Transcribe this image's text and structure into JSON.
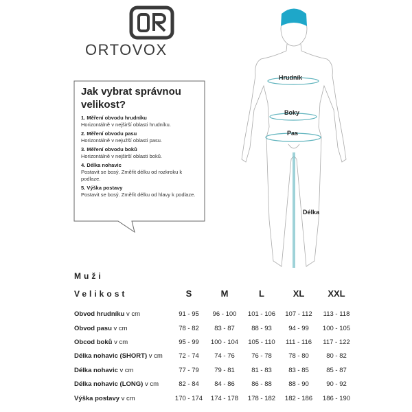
{
  "brand": {
    "name": "ORTOVOX",
    "logo_color": "#3a3a3a"
  },
  "guide": {
    "title": "Jak vybrat správnou velikost?",
    "steps": [
      {
        "heading": "1. Měření obvodu hrudníku",
        "text": "Horizontálně v nejširší oblasti hrudníku."
      },
      {
        "heading": "2. Měření obvodu pasu",
        "text": "Horizontálně v nejužší oblasti pasu."
      },
      {
        "heading": "3. Měření obvodu boků",
        "text": "Horizontálně v nejširší oblasti boků."
      },
      {
        "heading": "4. Délka nohavic",
        "text": "Postavit se bosý. Změřit délku od rozkroku k podlaze."
      },
      {
        "heading": "5. Výška postavy",
        "text": "Postavit se bosý. Změřit délku od hlavy k podlaze."
      }
    ]
  },
  "figure": {
    "labels": {
      "chest": "Hrudník",
      "hips": "Boky",
      "waist": "Pas",
      "length": "Délka"
    },
    "accent_color": "#1ea7c9",
    "line_color": "#5fb3bd"
  },
  "table": {
    "section": "Muži",
    "size_label": "Velikost",
    "sizes": [
      "S",
      "M",
      "L",
      "XL",
      "XXL"
    ],
    "rows": [
      {
        "label": "Obvod hrudníku",
        "unit": "v cm",
        "values": [
          "91 - 95",
          "96 - 100",
          "101 - 106",
          "107 - 112",
          "113 - 118"
        ]
      },
      {
        "label": "Obvod pasu",
        "unit": "v cm",
        "values": [
          "78 - 82",
          "83 - 87",
          "88 - 93",
          "94 - 99",
          "100 - 105"
        ]
      },
      {
        "label": "Obcod boků",
        "unit": "v cm",
        "values": [
          "95 - 99",
          "100 - 104",
          "105 - 110",
          "111 - 116",
          "117 - 122"
        ]
      },
      {
        "label": "Délka nohavic (SHORT)",
        "unit": "v cm",
        "values": [
          "72 - 74",
          "74 - 76",
          "76 - 78",
          "78 - 80",
          "80 - 82"
        ]
      },
      {
        "label": "Délka nohavic",
        "unit": "v cm",
        "values": [
          "77 - 79",
          "79 - 81",
          "81 - 83",
          "83 - 85",
          "85 - 87"
        ]
      },
      {
        "label": "Délka nohavic (LONG)",
        "unit": "v cm",
        "values": [
          "82 - 84",
          "84 - 86",
          "86 - 88",
          "88 - 90",
          "90 - 92"
        ]
      },
      {
        "label": "Výška postavy",
        "unit": "v cm",
        "values": [
          "170 - 174",
          "174 - 178",
          "178 - 182",
          "182 - 186",
          "186 - 190"
        ]
      }
    ]
  }
}
